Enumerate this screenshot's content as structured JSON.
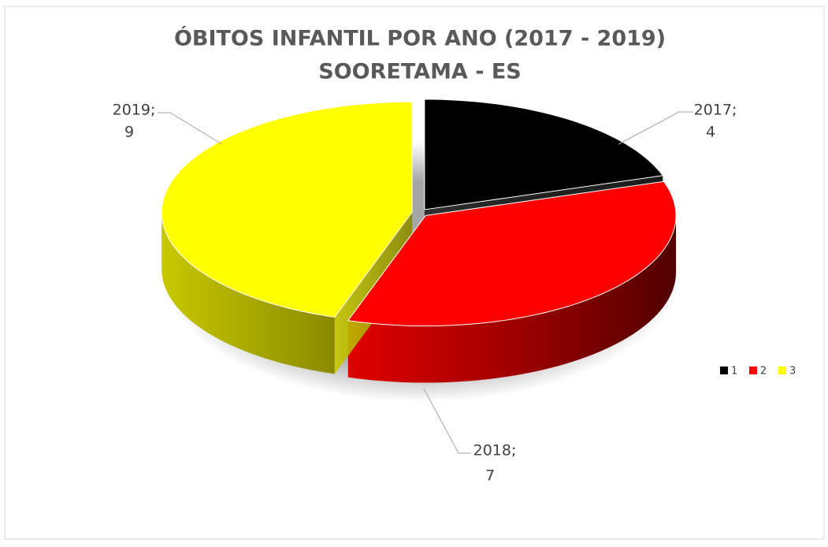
{
  "chart_data": {
    "type": "pie3d",
    "title": "ÓBITOS INFANTIL POR ANO (2017 - 2019)",
    "subtitle": "SOORETAMA  - ES",
    "categories": [
      "2017;",
      "2018;",
      "2019;"
    ],
    "values": [
      4,
      7,
      9
    ],
    "colors": [
      "#000000",
      "#ff0000",
      "#ffff00"
    ],
    "legend": [
      "1",
      "2",
      "3"
    ],
    "legend_position": "right"
  }
}
